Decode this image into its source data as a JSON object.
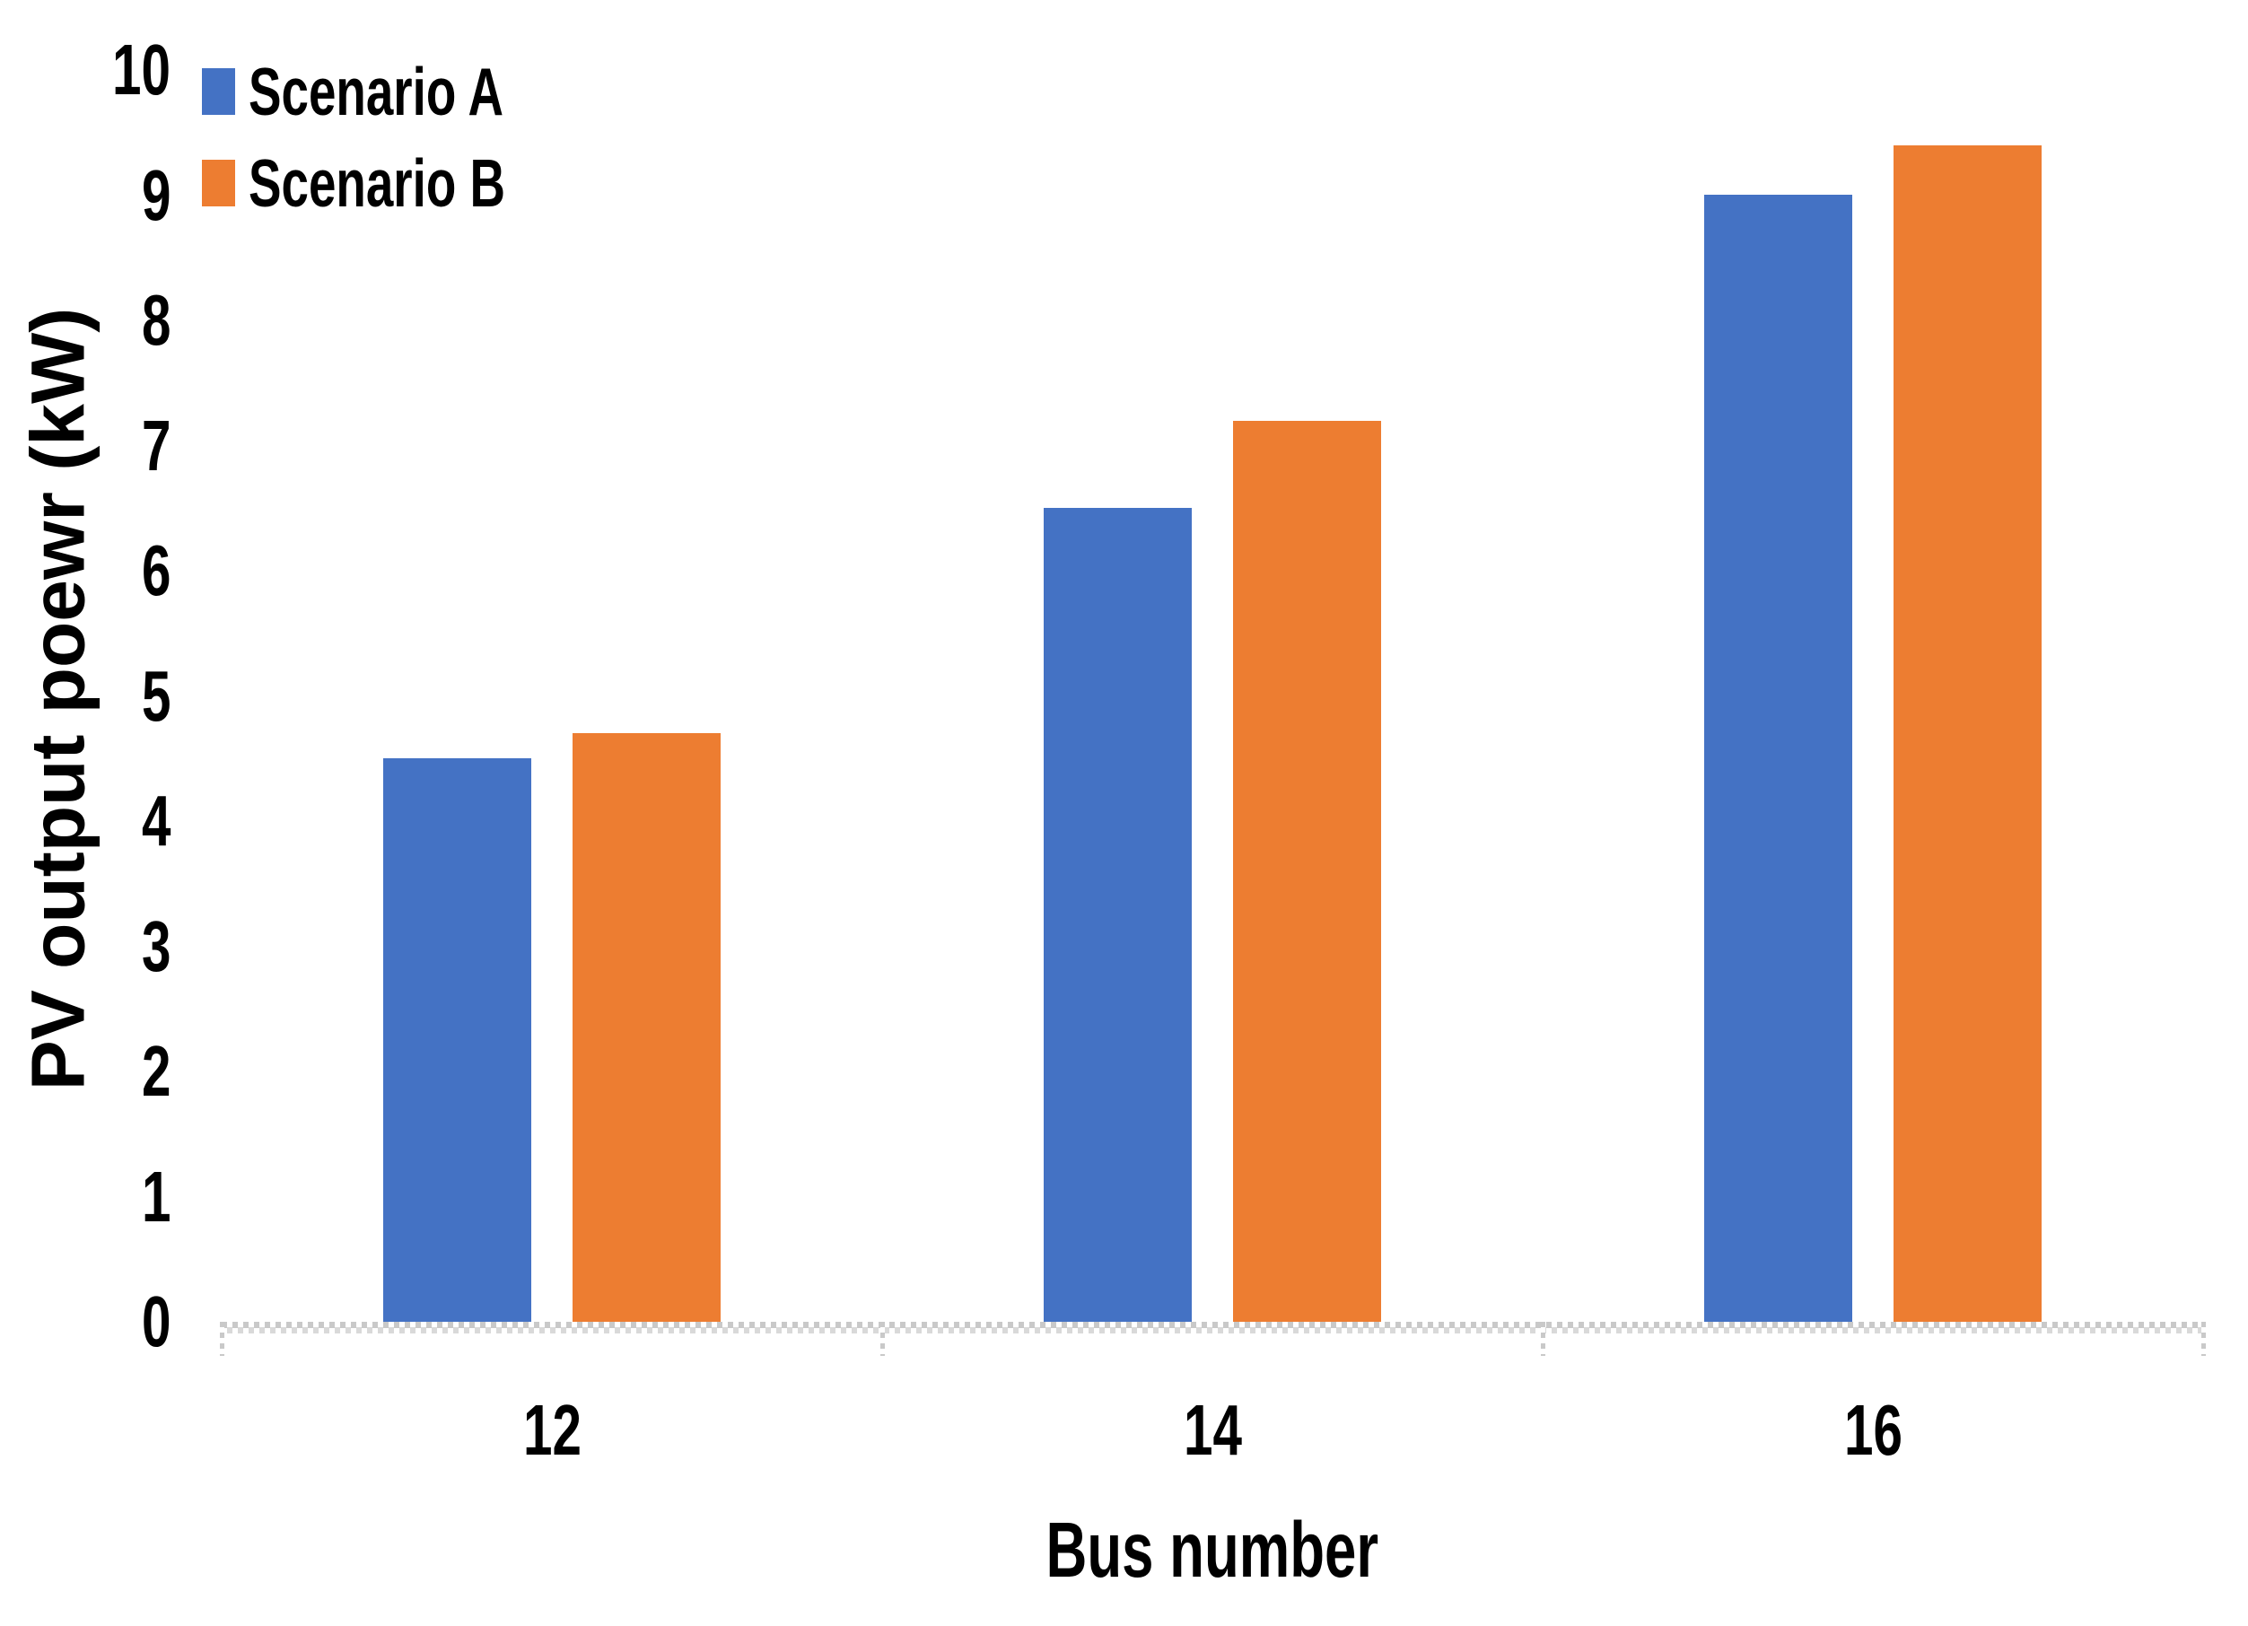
{
  "chart_data": {
    "type": "bar",
    "categories": [
      "12",
      "14",
      "16"
    ],
    "series": [
      {
        "name": "Scenario A",
        "color": "#4472C4",
        "values": [
          4.5,
          6.5,
          9.0
        ]
      },
      {
        "name": "Scenario B",
        "color": "#ED7D31",
        "values": [
          4.7,
          7.2,
          9.4
        ]
      }
    ],
    "title": "",
    "xlabel": "Bus number",
    "ylabel": "PV output poewr (kW)",
    "ylim": [
      0,
      10
    ],
    "yticks": [
      0,
      1,
      2,
      3,
      4,
      5,
      6,
      7,
      8,
      9,
      10
    ],
    "grid": false,
    "legend_position": "top-left",
    "axis_color": "#d9d9d9",
    "text_color": "#000000",
    "background_color": "#ffffff"
  }
}
